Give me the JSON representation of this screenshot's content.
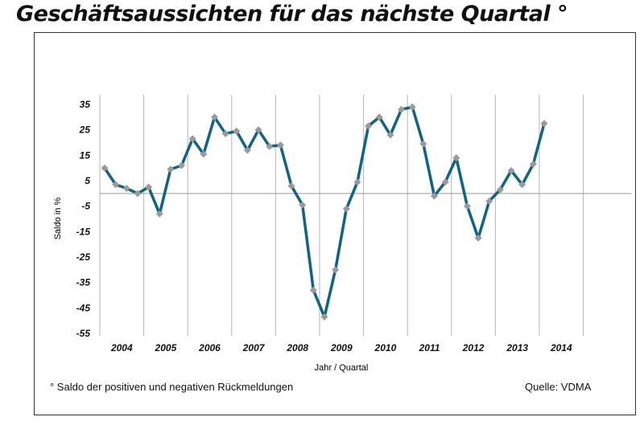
{
  "title": "Geschäftsaussichten für das nächste Quartal °",
  "footnote": "° Saldo der positiven und negativen Rückmeldungen",
  "source": "Quelle: VDMA",
  "chart_data": {
    "type": "line",
    "title": "Geschäftsaussichten für das nächste Quartal °",
    "xlabel": "Jahr / Quartal",
    "ylabel": "Saldo in  %",
    "ylim": [
      -55,
      35
    ],
    "yticks": [
      35,
      25,
      15,
      5,
      -5,
      -15,
      -25,
      -35,
      -45,
      -55
    ],
    "xtick_labels": [
      "2004",
      "2005",
      "2006",
      "2007",
      "2008",
      "2009",
      "2010",
      "2011",
      "2012",
      "2013",
      "2014"
    ],
    "grid": "vertical at year boundaries, horizontal zero line",
    "line_color": "#0e6482",
    "marker_color": "#9a9a9a",
    "marker": "diamond",
    "x": [
      "2004 Q1",
      "2004 Q2",
      "2004 Q3",
      "2004 Q4",
      "2005 Q1",
      "2005 Q2",
      "2005 Q3",
      "2005 Q4",
      "2006 Q1",
      "2006 Q2",
      "2006 Q3",
      "2006 Q4",
      "2007 Q1",
      "2007 Q2",
      "2007 Q3",
      "2007 Q4",
      "2008 Q1",
      "2008 Q2",
      "2008 Q3",
      "2008 Q4",
      "2009 Q1",
      "2009 Q2",
      "2009 Q3",
      "2009 Q4",
      "2010 Q1",
      "2010 Q2",
      "2010 Q3",
      "2010 Q4",
      "2011 Q1",
      "2011 Q2",
      "2011 Q3",
      "2011 Q4",
      "2012 Q1",
      "2012 Q2",
      "2012 Q3",
      "2012 Q4",
      "2013 Q1",
      "2013 Q2",
      "2013 Q3",
      "2013 Q4",
      "2014 Q1"
    ],
    "values": [
      10,
      3.5,
      2,
      0,
      2.5,
      -8,
      9.5,
      11,
      21.5,
      15.5,
      30,
      23.5,
      24.5,
      17,
      25,
      18.5,
      19,
      3,
      -4.5,
      -38,
      -48.5,
      -30,
      -6,
      4.5,
      26.5,
      30,
      23,
      33,
      34,
      19.5,
      -1,
      4.5,
      14,
      -5,
      -17.5,
      -3,
      1.5,
      9,
      3.5,
      11.5,
      27.5
    ]
  }
}
